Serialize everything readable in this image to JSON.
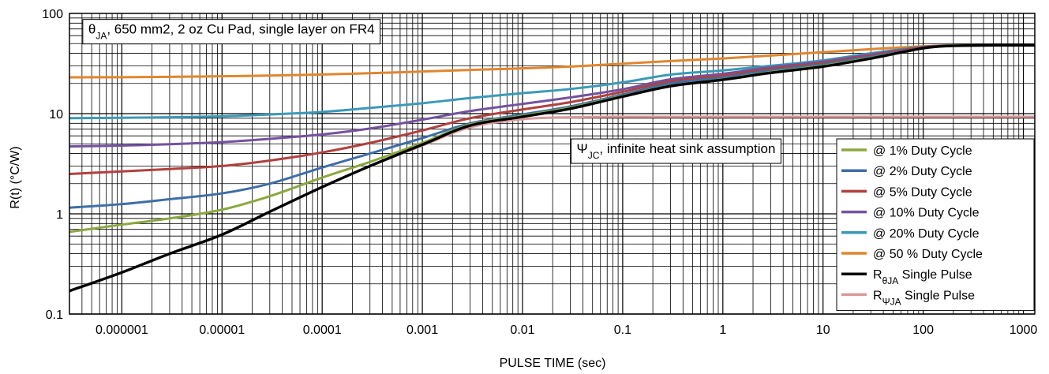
{
  "chart_data": {
    "type": "line",
    "xlabel": "PULSE TIME (sec)",
    "ylabel": "R(t) (°C/W)",
    "x_scale": "log",
    "y_scale": "log",
    "xlim": [
      3e-07,
      1300
    ],
    "ylim": [
      0.1,
      100
    ],
    "grid": true,
    "x_ticks": [
      {
        "value": 1e-06,
        "label": "0.000001"
      },
      {
        "value": 1e-05,
        "label": "0.00001"
      },
      {
        "value": 0.0001,
        "label": "0.0001"
      },
      {
        "value": 0.001,
        "label": "0.001"
      },
      {
        "value": 0.01,
        "label": "0.01"
      },
      {
        "value": 0.1,
        "label": "0.1"
      },
      {
        "value": 1,
        "label": "1"
      },
      {
        "value": 10,
        "label": "10"
      },
      {
        "value": 100,
        "label": "100"
      },
      {
        "value": 1000,
        "label": "1000"
      }
    ],
    "y_ticks": [
      {
        "value": 0.1,
        "label": "0.1"
      },
      {
        "value": 1,
        "label": "1"
      },
      {
        "value": 10,
        "label": "10"
      },
      {
        "value": 100,
        "label": "100"
      }
    ],
    "annotations": [
      {
        "label": "θ",
        "sub": "JA",
        "text": ", 650 mm2, 2 oz Cu Pad, single layer on FR4",
        "x": 4e-07,
        "y": 70
      },
      {
        "label": "Ψ",
        "sub": "JC",
        "text": ", infinite heat sink assumption",
        "x": 0.03,
        "y": 4.5
      }
    ],
    "legend_position": "bottom-right",
    "series": [
      {
        "name": "@ 1% Duty Cycle",
        "color": "#8aa83f",
        "x": [
          3e-07,
          1e-06,
          3e-06,
          1e-05,
          3e-05,
          0.0001,
          0.0003,
          0.001,
          0.003,
          0.01,
          0.03,
          0.1,
          0.3,
          1,
          3,
          10,
          30,
          100,
          200,
          500,
          1300
        ],
        "y": [
          0.66,
          0.78,
          0.9,
          1.1,
          1.5,
          2.3,
          3.3,
          5.1,
          7.8,
          9.5,
          11.5,
          15,
          19,
          22,
          26,
          30,
          36,
          45,
          48,
          48,
          48
        ]
      },
      {
        "name": "@ 2% Duty Cycle",
        "color": "#3e6ea6",
        "x": [
          3e-07,
          1e-06,
          3e-06,
          1e-05,
          3e-05,
          0.0001,
          0.0003,
          0.001,
          0.003,
          0.01,
          0.03,
          0.1,
          0.3,
          1,
          3,
          10,
          30,
          100,
          200,
          500,
          1300
        ],
        "y": [
          1.15,
          1.25,
          1.4,
          1.6,
          2.0,
          2.9,
          4.0,
          5.7,
          8.0,
          9.8,
          11.8,
          15.5,
          20,
          23,
          27,
          31,
          37,
          45,
          48,
          48,
          48
        ]
      },
      {
        "name": "@ 5% Duty Cycle",
        "color": "#b0413e",
        "x": [
          3e-07,
          1e-06,
          3e-06,
          1e-05,
          3e-05,
          0.0001,
          0.0003,
          0.001,
          0.003,
          0.01,
          0.03,
          0.1,
          0.3,
          1,
          3,
          10,
          30,
          100,
          200,
          500,
          1300
        ],
        "y": [
          2.5,
          2.65,
          2.8,
          3.0,
          3.4,
          4.1,
          5.1,
          6.8,
          9.0,
          11,
          13,
          16.5,
          21,
          24,
          28,
          32,
          38,
          46,
          48,
          48,
          48
        ]
      },
      {
        "name": "@ 10% Duty Cycle",
        "color": "#7452a0",
        "x": [
          3e-07,
          1e-06,
          3e-06,
          1e-05,
          3e-05,
          0.0001,
          0.0003,
          0.001,
          0.003,
          0.01,
          0.03,
          0.1,
          0.3,
          1,
          3,
          10,
          30,
          100,
          200,
          500,
          1300
        ],
        "y": [
          4.7,
          4.8,
          4.95,
          5.2,
          5.6,
          6.2,
          7.1,
          8.7,
          10.6,
          12.5,
          14.5,
          17.5,
          22,
          25,
          29,
          33,
          39,
          46,
          48,
          48,
          48
        ]
      },
      {
        "name": "@ 20% Duty Cycle",
        "color": "#3a9ab8",
        "x": [
          3e-07,
          1e-06,
          3e-06,
          1e-05,
          3e-05,
          0.0001,
          0.0003,
          0.001,
          0.003,
          0.01,
          0.03,
          0.1,
          0.3,
          1,
          3,
          10,
          30,
          100,
          200,
          500,
          1300
        ],
        "y": [
          9.0,
          9.1,
          9.2,
          9.4,
          9.8,
          10.4,
          11.4,
          12.7,
          14.3,
          16,
          17.6,
          20.5,
          24.5,
          27,
          30,
          34,
          40,
          46.5,
          48,
          48,
          48
        ]
      },
      {
        "name": "@ 50 % Duty Cycle",
        "color": "#e0862e",
        "x": [
          3e-07,
          1e-06,
          3e-06,
          1e-05,
          3e-05,
          0.0001,
          0.0003,
          0.001,
          0.003,
          0.01,
          0.03,
          0.1,
          0.3,
          1,
          3,
          10,
          30,
          100,
          200,
          500,
          1300
        ],
        "y": [
          23,
          23.1,
          23.3,
          23.6,
          24,
          24.6,
          25.3,
          26.3,
          27.3,
          28.3,
          29.5,
          31.5,
          33.5,
          35.5,
          38,
          41,
          44,
          47,
          48,
          48,
          48
        ]
      },
      {
        "name": "RθJA Single Pulse",
        "color": "#000000",
        "x": [
          3e-07,
          1e-06,
          3e-06,
          1e-05,
          3e-05,
          0.0001,
          0.0003,
          0.001,
          0.003,
          0.01,
          0.03,
          0.1,
          0.3,
          1,
          3,
          10,
          30,
          100,
          200,
          500,
          1300
        ],
        "y": [
          0.17,
          0.26,
          0.4,
          0.62,
          1.05,
          1.85,
          3.0,
          4.9,
          7.6,
          9.3,
          11.2,
          14.8,
          18.8,
          21.8,
          25.5,
          29.5,
          35.5,
          45,
          47.5,
          48,
          48
        ]
      },
      {
        "name": "RΨJA Single Pulse",
        "color": "#d99a9a",
        "x": [
          3e-07,
          1e-06,
          3e-06,
          1e-05,
          3e-05,
          0.0001,
          0.0003,
          0.001,
          0.003,
          0.01,
          0.03,
          0.1,
          0.3,
          1,
          3,
          10,
          30,
          100,
          200,
          500,
          1300
        ],
        "y": [
          0.17,
          0.26,
          0.4,
          0.62,
          1.05,
          1.85,
          3.0,
          4.8,
          7.3,
          8.8,
          9.2,
          9.3,
          9.3,
          9.3,
          9.3,
          9.3,
          9.3,
          9.3,
          9.3,
          9.3,
          9.3
        ]
      }
    ],
    "legend": [
      {
        "text": "@ 1% Duty Cycle",
        "color": "#8aa83f"
      },
      {
        "text": "@ 2% Duty Cycle",
        "color": "#3e6ea6"
      },
      {
        "text": "@ 5% Duty Cycle",
        "color": "#b0413e"
      },
      {
        "text": "@ 10% Duty Cycle",
        "color": "#7452a0"
      },
      {
        "text": "@ 20% Duty Cycle",
        "color": "#3a9ab8"
      },
      {
        "text": "@ 50 % Duty Cycle",
        "color": "#e0862e"
      },
      {
        "prefix": "R",
        "sub": "θJA",
        "text": " Single Pulse",
        "color": "#000000"
      },
      {
        "prefix": "R",
        "sub": "ΨJA",
        "text": " Single Pulse",
        "color": "#d99a9a"
      }
    ]
  }
}
